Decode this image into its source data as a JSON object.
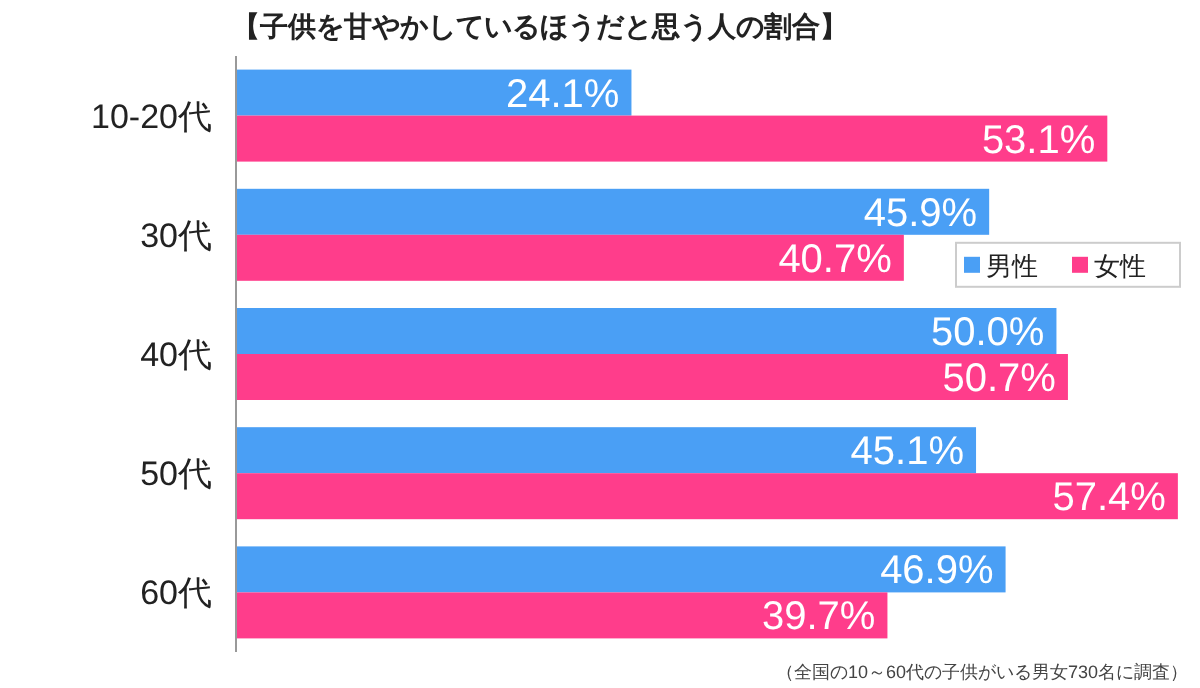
{
  "chart_data": {
    "type": "bar",
    "orientation": "horizontal",
    "title": "【子供を甘やかしているほうだと思う人の割合】",
    "categories": [
      "10-20代",
      "30代",
      "40代",
      "50代",
      "60代"
    ],
    "series": [
      {
        "name": "男性",
        "color": "#4a9ff5",
        "values": [
          24.1,
          45.9,
          50.0,
          45.1,
          46.9
        ],
        "value_labels": [
          "24.1%",
          "45.9%",
          "50.0%",
          "45.1%",
          "46.9%"
        ]
      },
      {
        "name": "女性",
        "color": "#ff3d8b",
        "values": [
          53.1,
          40.7,
          50.7,
          57.4,
          39.7
        ],
        "value_labels": [
          "53.1%",
          "40.7%",
          "50.7%",
          "57.4%",
          "39.7%"
        ]
      }
    ],
    "legend": "right",
    "annotations": [
      "（全国の10～60代の子供がいる男女730名に調査）"
    ]
  }
}
